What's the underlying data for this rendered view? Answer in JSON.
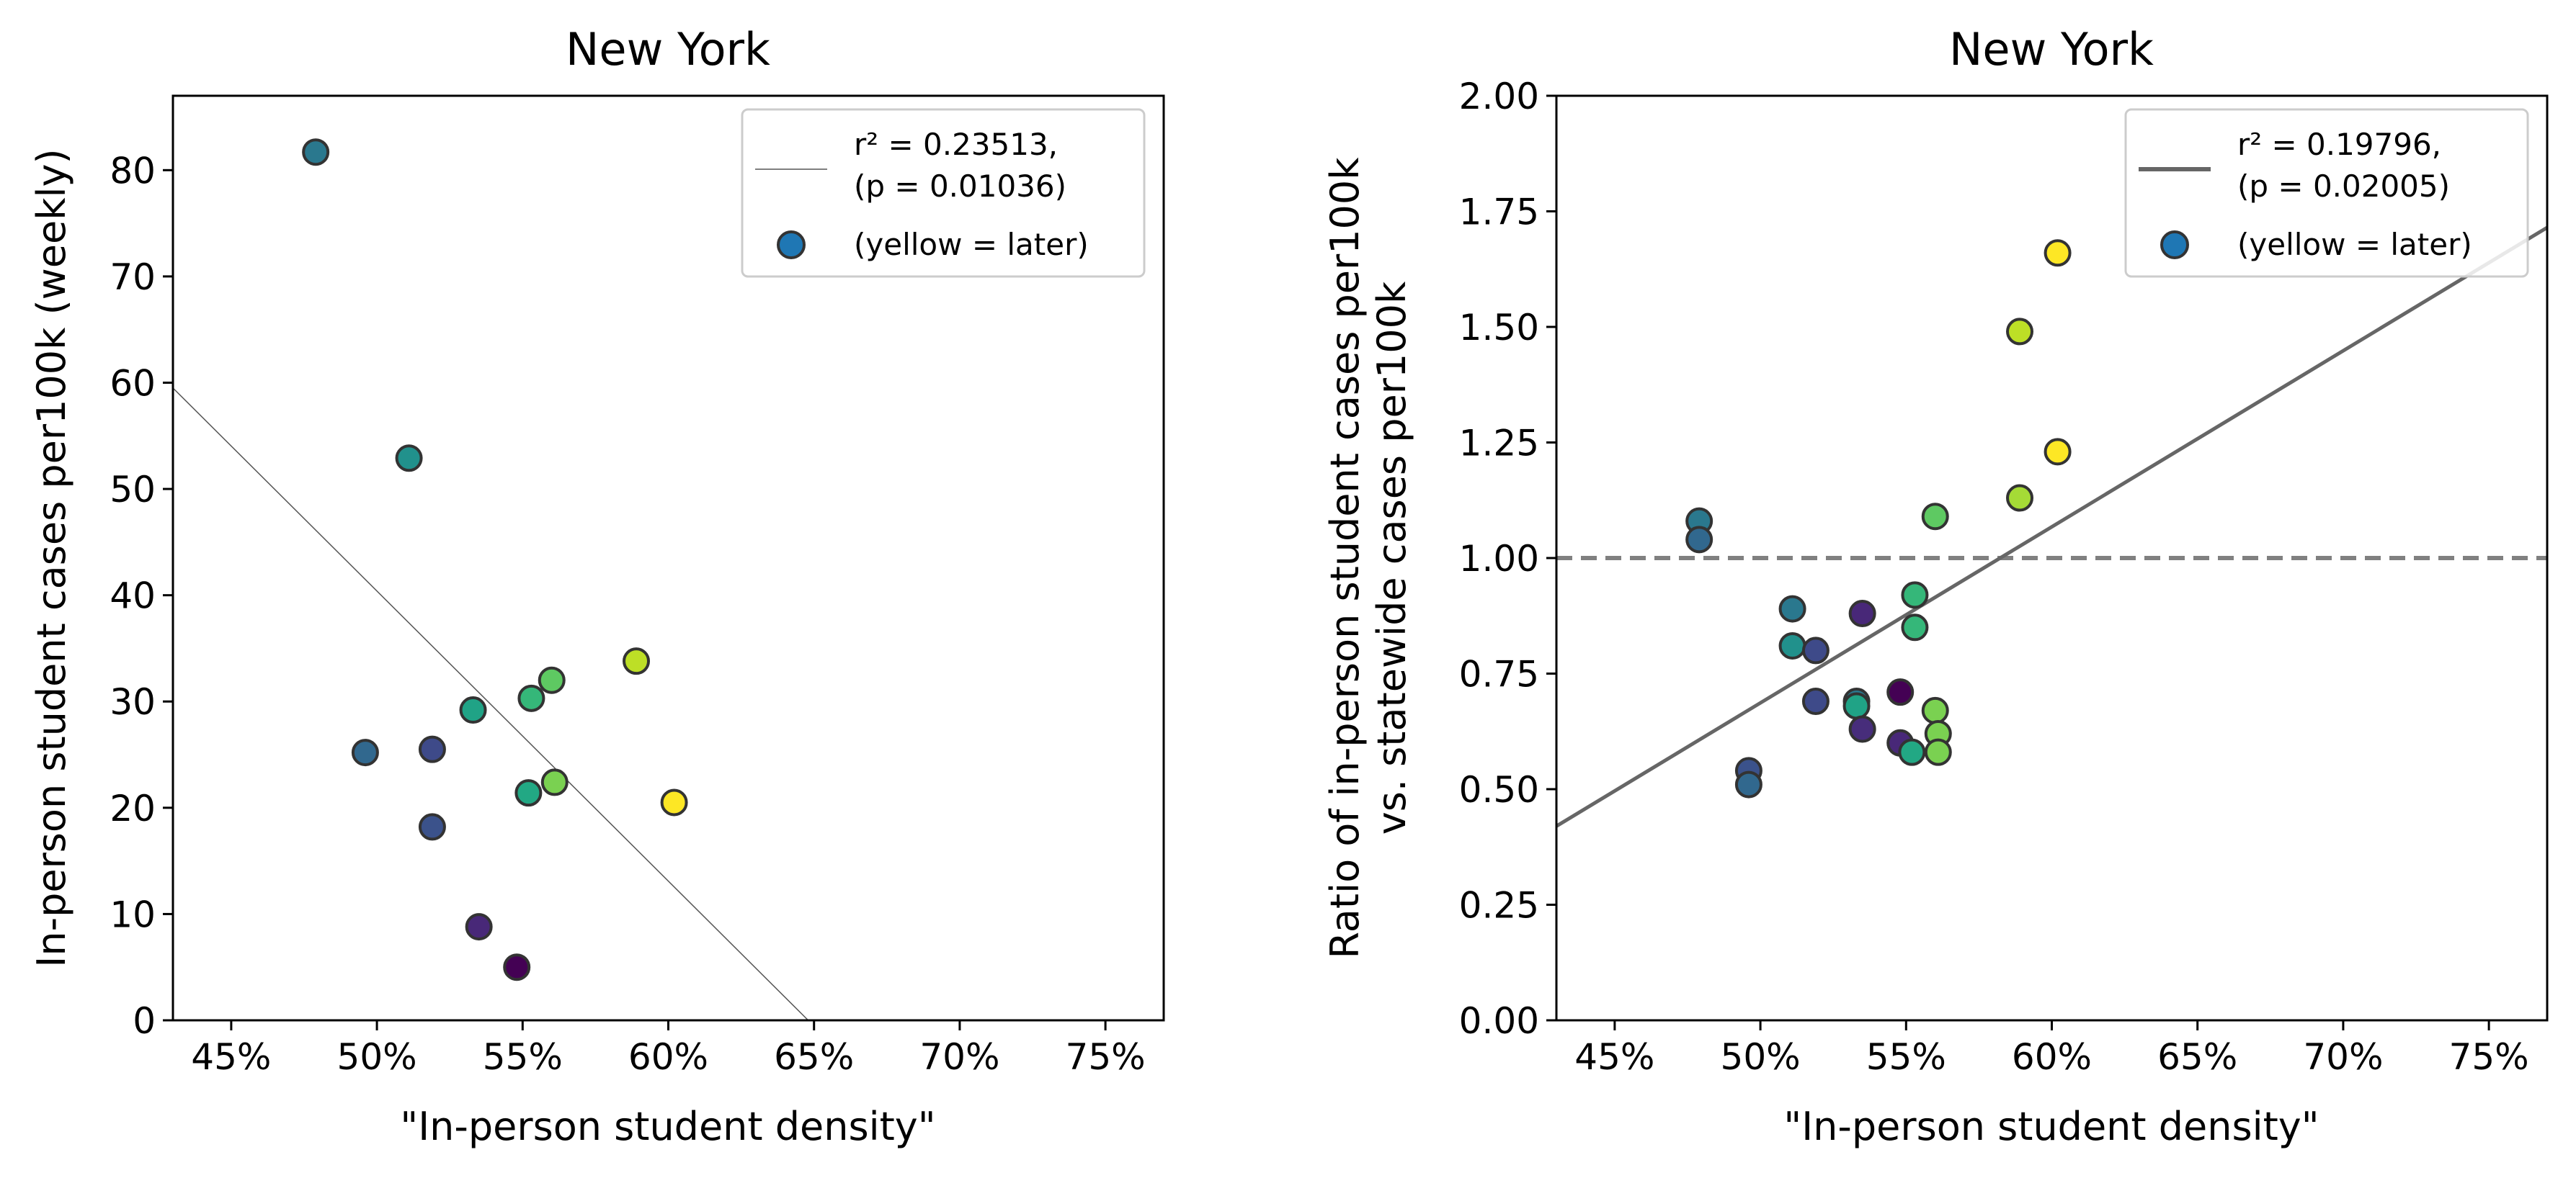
{
  "chart_data": [
    {
      "type": "scatter",
      "title": "New York",
      "xlabel": "\"In-person student density\"",
      "ylabel": "In-person student cases per100k (weekly)",
      "xlim": [
        0.43,
        0.77
      ],
      "ylim": [
        0,
        87
      ],
      "x_ticks": [
        0.45,
        0.5,
        0.55,
        0.6,
        0.65,
        0.7,
        0.75
      ],
      "x_tick_labels": [
        "45%",
        "50%",
        "55%",
        "60%",
        "65%",
        "70%",
        "75%"
      ],
      "y_ticks": [
        0,
        10,
        20,
        30,
        40,
        50,
        60,
        70,
        80
      ],
      "y_tick_labels": [
        "0",
        "10",
        "20",
        "30",
        "40",
        "50",
        "60",
        "70",
        "80"
      ],
      "grid": false,
      "legend_position": "top-right",
      "legend": [
        {
          "kind": "line",
          "label_line1": "r² = 0.23513,",
          "label_line2": "(p = 0.01036)"
        },
        {
          "kind": "marker",
          "label_line1": "(yellow = later)",
          "label_line2": ""
        }
      ],
      "fit_line": {
        "x": [
          0.43,
          0.648
        ],
        "y": [
          59.5,
          0
        ],
        "color": "#555555",
        "style": "thin"
      },
      "reference_line": null,
      "colormap": "viridis",
      "points": [
        {
          "x": 0.479,
          "y": 81.7,
          "color": "#2a788e"
        },
        {
          "x": 0.511,
          "y": 52.9,
          "color": "#21918c"
        },
        {
          "x": 0.496,
          "y": 25.2,
          "color": "#31688e"
        },
        {
          "x": 0.519,
          "y": 25.5,
          "color": "#3e4a89"
        },
        {
          "x": 0.519,
          "y": 18.2,
          "color": "#3b528b"
        },
        {
          "x": 0.533,
          "y": 29.2,
          "color": "#20a386"
        },
        {
          "x": 0.535,
          "y": 8.8,
          "color": "#482878"
        },
        {
          "x": 0.548,
          "y": 5.0,
          "color": "#440154"
        },
        {
          "x": 0.553,
          "y": 30.3,
          "color": "#35b779"
        },
        {
          "x": 0.552,
          "y": 21.4,
          "color": "#22a884"
        },
        {
          "x": 0.56,
          "y": 32.0,
          "color": "#5ec962"
        },
        {
          "x": 0.561,
          "y": 22.4,
          "color": "#7ad151"
        },
        {
          "x": 0.589,
          "y": 33.8,
          "color": "#bddf26"
        },
        {
          "x": 0.602,
          "y": 20.5,
          "color": "#fde725"
        }
      ]
    },
    {
      "type": "scatter",
      "title": "New York",
      "xlabel": "\"In-person student density\"",
      "ylabel_line1": "Ratio of in-person student cases per100k",
      "ylabel_line2": "vs. statewide cases per100k",
      "xlim": [
        0.43,
        0.77
      ],
      "ylim": [
        0,
        2.0
      ],
      "x_ticks": [
        0.45,
        0.5,
        0.55,
        0.6,
        0.65,
        0.7,
        0.75
      ],
      "x_tick_labels": [
        "45%",
        "50%",
        "55%",
        "60%",
        "65%",
        "70%",
        "75%"
      ],
      "y_ticks": [
        0,
        0.25,
        0.5,
        0.75,
        1.0,
        1.25,
        1.5,
        1.75,
        2.0
      ],
      "y_tick_labels": [
        "0.00",
        "0.25",
        "0.50",
        "0.75",
        "1.00",
        "1.25",
        "1.50",
        "1.75",
        "2.00"
      ],
      "grid": false,
      "legend_position": "top-right",
      "legend": [
        {
          "kind": "line",
          "label_line1": "r² = 0.19796,",
          "label_line2": "(p = 0.02005)"
        },
        {
          "kind": "marker",
          "label_line1": "(yellow = later)",
          "label_line2": ""
        }
      ],
      "fit_line": {
        "x": [
          0.43,
          0.77
        ],
        "y": [
          0.42,
          1.715
        ],
        "color": "#666666",
        "style": "thick"
      },
      "reference_line": {
        "y": 1.0,
        "color": "#808080",
        "style": "dashed"
      },
      "colormap": "viridis",
      "points": [
        {
          "x": 0.479,
          "y": 1.08,
          "color": "#2a788e"
        },
        {
          "x": 0.479,
          "y": 1.04,
          "color": "#31688e"
        },
        {
          "x": 0.496,
          "y": 0.54,
          "color": "#3b528b"
        },
        {
          "x": 0.496,
          "y": 0.51,
          "color": "#31688e"
        },
        {
          "x": 0.511,
          "y": 0.89,
          "color": "#2a788e"
        },
        {
          "x": 0.511,
          "y": 0.81,
          "color": "#21918c"
        },
        {
          "x": 0.519,
          "y": 0.8,
          "color": "#3e4a89"
        },
        {
          "x": 0.519,
          "y": 0.69,
          "color": "#3e4a89"
        },
        {
          "x": 0.533,
          "y": 0.69,
          "color": "#2a788e"
        },
        {
          "x": 0.533,
          "y": 0.68,
          "color": "#20a386"
        },
        {
          "x": 0.535,
          "y": 0.88,
          "color": "#482878"
        },
        {
          "x": 0.535,
          "y": 0.63,
          "color": "#472d7b"
        },
        {
          "x": 0.548,
          "y": 0.71,
          "color": "#440154"
        },
        {
          "x": 0.548,
          "y": 0.6,
          "color": "#482878"
        },
        {
          "x": 0.552,
          "y": 0.58,
          "color": "#22a884"
        },
        {
          "x": 0.553,
          "y": 0.92,
          "color": "#35b779"
        },
        {
          "x": 0.553,
          "y": 0.85,
          "color": "#35b779"
        },
        {
          "x": 0.56,
          "y": 1.09,
          "color": "#5ec962"
        },
        {
          "x": 0.56,
          "y": 0.67,
          "color": "#7ad151"
        },
        {
          "x": 0.561,
          "y": 0.62,
          "color": "#7ad151"
        },
        {
          "x": 0.561,
          "y": 0.58,
          "color": "#7ad151"
        },
        {
          "x": 0.589,
          "y": 1.49,
          "color": "#bddf26"
        },
        {
          "x": 0.589,
          "y": 1.13,
          "color": "#a5db36"
        },
        {
          "x": 0.602,
          "y": 1.66,
          "color": "#fde725"
        },
        {
          "x": 0.602,
          "y": 1.23,
          "color": "#fde725"
        }
      ]
    }
  ]
}
